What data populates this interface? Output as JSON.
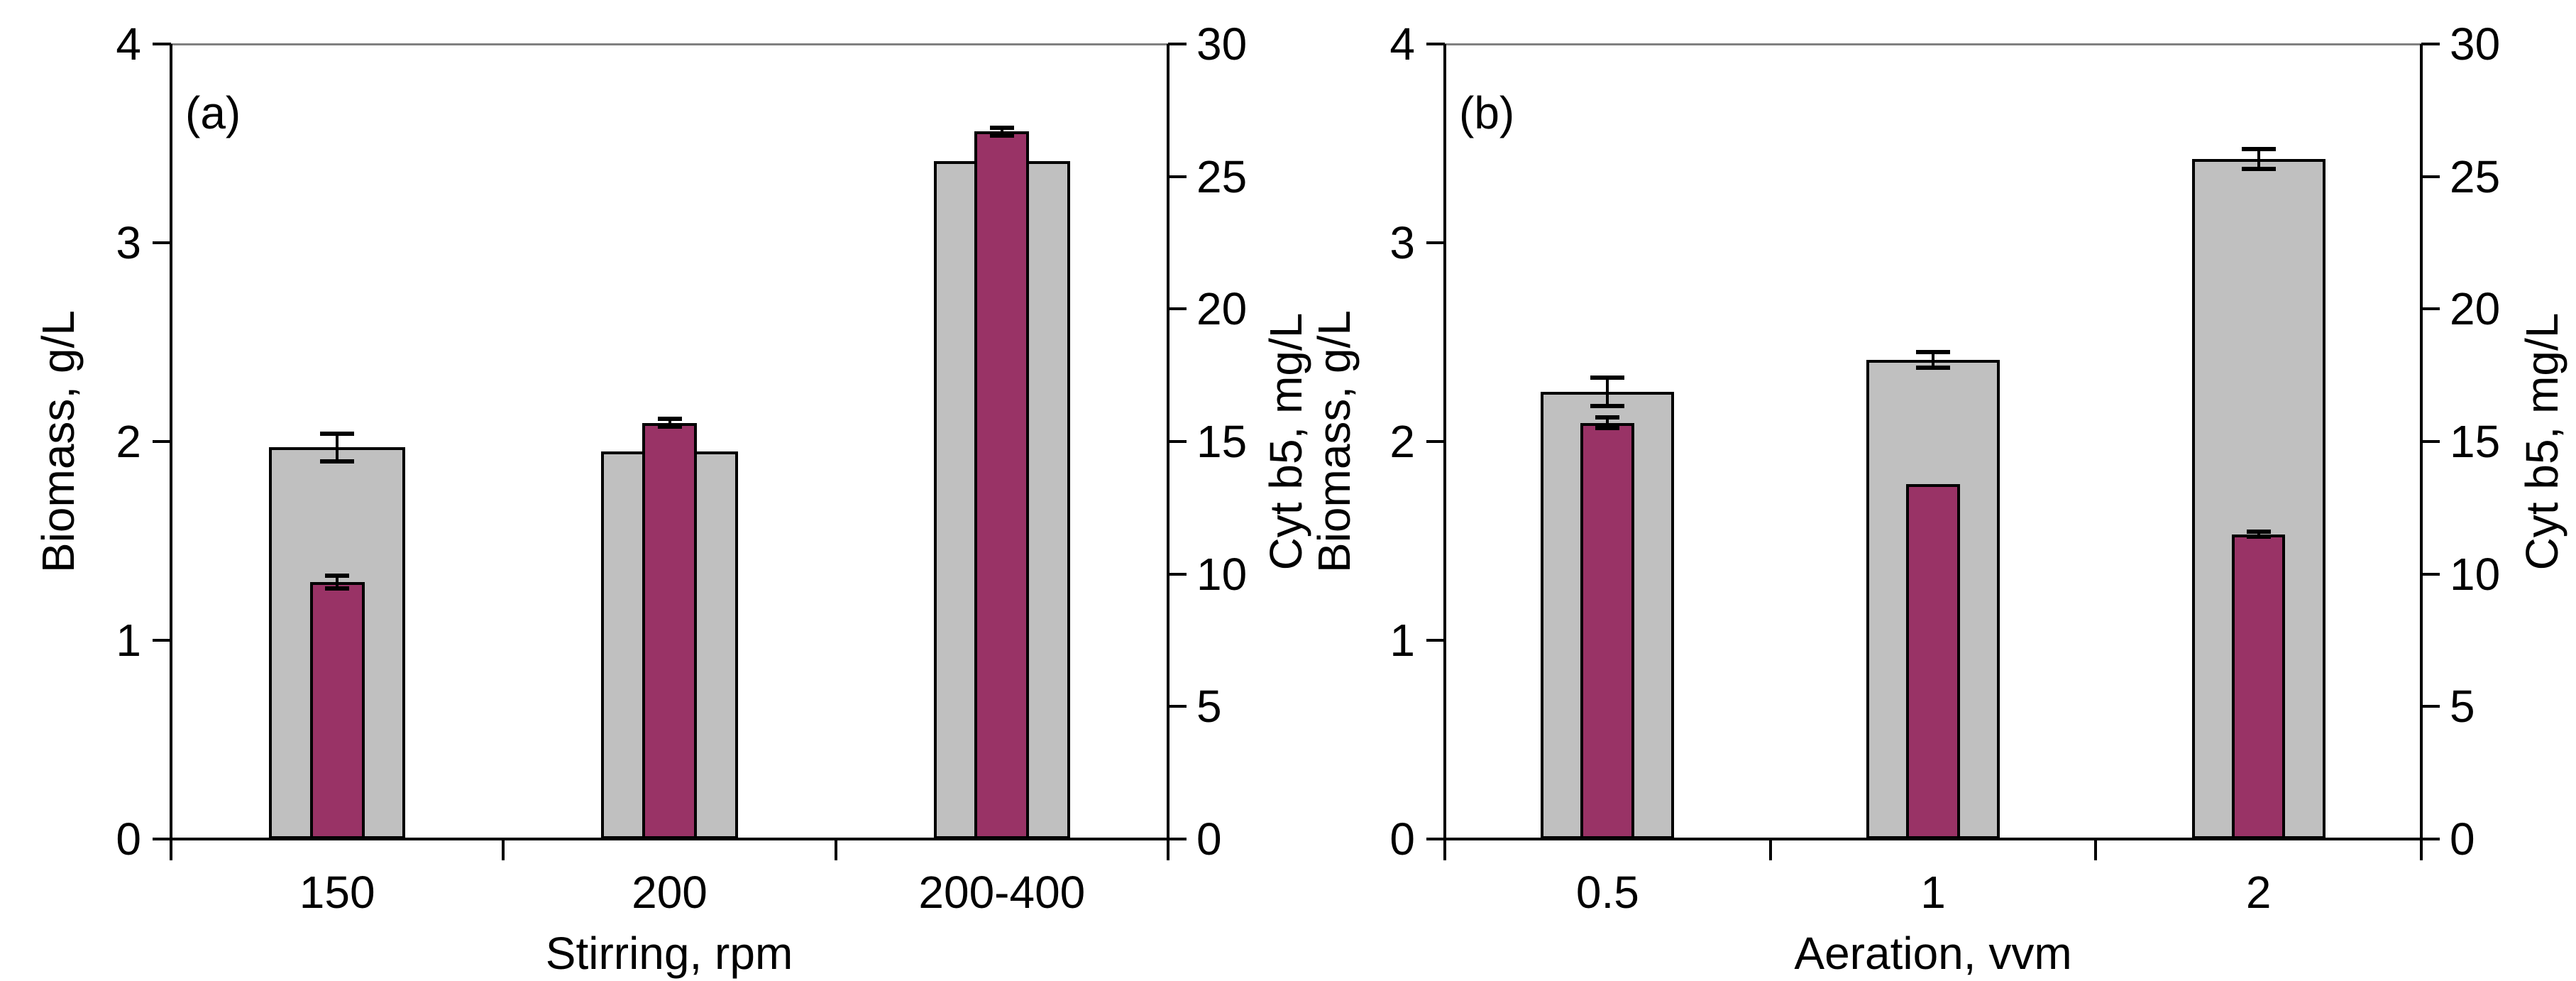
{
  "figure": {
    "background": "#ffffff",
    "panel_tags": [
      "(a)",
      "(b)"
    ]
  },
  "colors": {
    "biomass_bar_fill": "#c0c0c0",
    "cyt_b5_bar_fill": "#993366",
    "outline": "#000000",
    "top_border_line": "#808080"
  },
  "chart_data": [
    {
      "type": "bar",
      "panel": "(a)",
      "title": "",
      "xlabel": "Stirring, rpm",
      "ylabel_left": "Biomass, g/L",
      "ylabel_right": "Cyt b5, mg/L",
      "categories": [
        "150",
        "200",
        "200-400"
      ],
      "y_left_range": [
        0,
        4
      ],
      "y_right_range": [
        0,
        30
      ],
      "y_left_ticks": [
        0,
        1,
        2,
        3,
        4
      ],
      "y_right_ticks": [
        0,
        5,
        10,
        15,
        20,
        25,
        30
      ],
      "grid": "top-border-only",
      "legend": "none",
      "series": [
        {
          "name": "biomass",
          "axis": "left",
          "color": "#c0c0c0",
          "values": [
            1.97,
            1.95,
            3.41
          ],
          "errors": [
            0.07,
            0,
            0
          ]
        },
        {
          "name": "cyt-b5",
          "axis": "right",
          "color": "#993366",
          "values": [
            9.7,
            15.7,
            26.7
          ],
          "errors": [
            0.25,
            0.15,
            0.15
          ]
        }
      ]
    },
    {
      "type": "bar",
      "panel": "(b)",
      "title": "",
      "xlabel": "Aeration, vvm",
      "ylabel_left": "Biomass, g/L",
      "ylabel_right": "Cyt b5, mg/L",
      "categories": [
        "0.5",
        "1",
        "2"
      ],
      "y_left_range": [
        0,
        4
      ],
      "y_right_range": [
        0,
        30
      ],
      "y_left_ticks": [
        0,
        1,
        2,
        3,
        4
      ],
      "y_right_ticks": [
        0,
        5,
        10,
        15,
        20,
        25,
        30
      ],
      "grid": "top-border-only",
      "legend": "none",
      "series": [
        {
          "name": "biomass",
          "axis": "left",
          "color": "#c0c0c0",
          "values": [
            2.25,
            2.41,
            3.42
          ],
          "errors": [
            0.07,
            0.04,
            0.05
          ]
        },
        {
          "name": "cyt-b5",
          "axis": "right",
          "color": "#993366",
          "values": [
            15.7,
            13.4,
            11.5
          ],
          "errors": [
            0.2,
            0,
            0.1
          ]
        }
      ]
    }
  ]
}
